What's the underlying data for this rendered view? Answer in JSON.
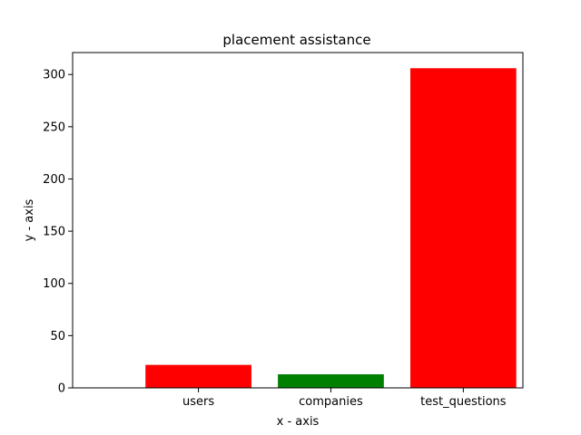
{
  "chart_data": {
    "type": "bar",
    "title": "placement assistance",
    "xlabel": "x - axis",
    "ylabel": "y - axis",
    "categories": [
      "users",
      "companies",
      "test_questions"
    ],
    "values": [
      22,
      13,
      306
    ],
    "colors": [
      "#ff0000",
      "#008000",
      "#ff0000"
    ],
    "ylim": [
      0,
      321
    ],
    "yticks": [
      0,
      50,
      100,
      150,
      200,
      250,
      300
    ],
    "grid": false,
    "legend": "none"
  }
}
